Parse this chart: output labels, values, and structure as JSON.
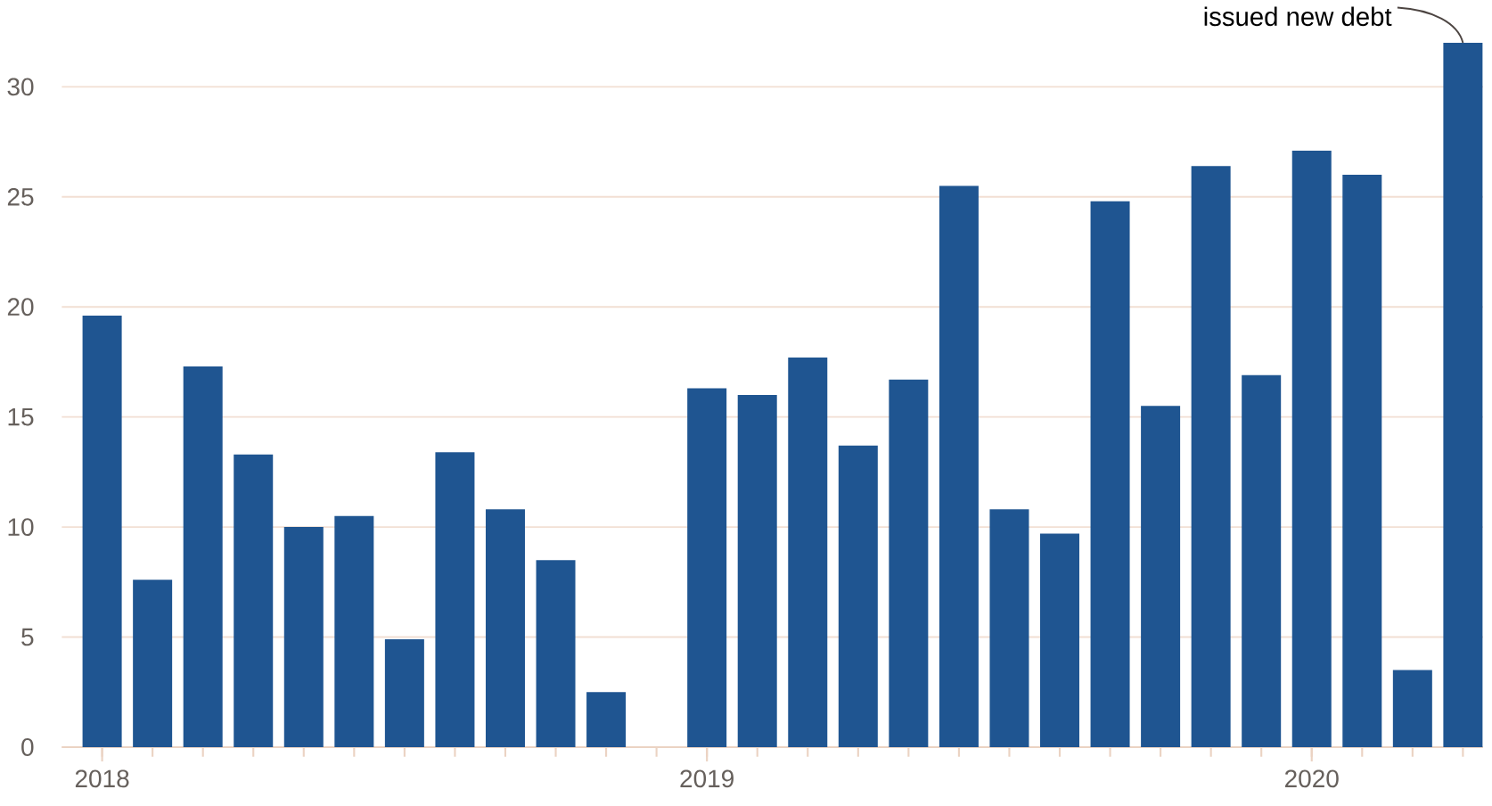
{
  "chart_data": {
    "type": "bar",
    "color": "#1f5591",
    "x": [
      "2018-01",
      "2018-02",
      "2018-03",
      "2018-04",
      "2018-05",
      "2018-06",
      "2018-07",
      "2018-08",
      "2018-09",
      "2018-10",
      "2018-11",
      "2018-12",
      "2019-01",
      "2019-02",
      "2019-03",
      "2019-04",
      "2019-05",
      "2019-06",
      "2019-07",
      "2019-08",
      "2019-09",
      "2019-10",
      "2019-11",
      "2019-12",
      "2020-01",
      "2020-02",
      "2020-03",
      "2020-04"
    ],
    "values": [
      19.6,
      7.6,
      17.3,
      13.3,
      10.0,
      10.5,
      4.9,
      13.4,
      10.8,
      8.5,
      2.5,
      null,
      16.3,
      16.0,
      17.7,
      13.7,
      16.7,
      25.5,
      10.8,
      9.7,
      24.8,
      15.5,
      26.4,
      16.9,
      27.1,
      26.0,
      3.5,
      32.0
    ],
    "xlim": [
      "2017-12-07",
      "2020-04-12"
    ],
    "xticks": [
      {
        "value": "2018-01",
        "label": "2018"
      },
      {
        "value": "2019-01",
        "label": "2019"
      },
      {
        "value": "2020-01",
        "label": "2020"
      }
    ],
    "ylim": [
      0,
      32
    ],
    "yticks": [
      0,
      5,
      10,
      15,
      20,
      25,
      30
    ],
    "grid": "y",
    "annotations": [
      {
        "text": "issued new debt",
        "x": "2020-04",
        "y": 32.0
      }
    ]
  }
}
